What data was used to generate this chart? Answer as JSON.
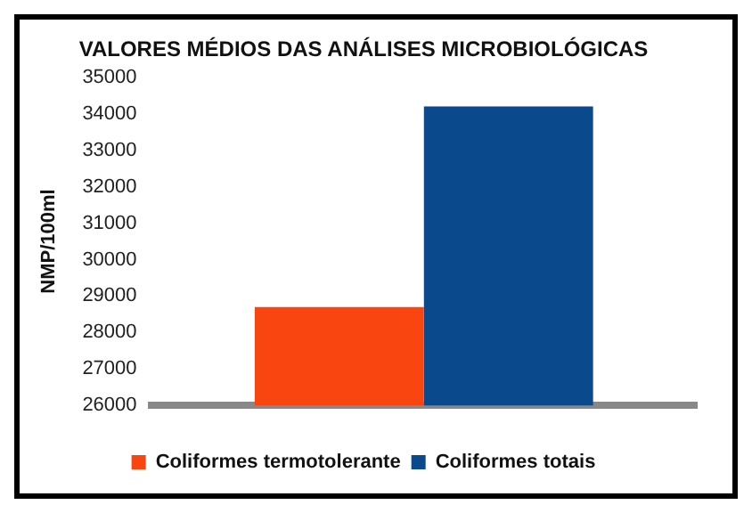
{
  "chart_data": {
    "type": "bar",
    "title": "VALORES MÉDIOS DAS ANÁLISES MICROBIOLÓGICAS",
    "ylabel": "NMP/100ml",
    "categories": [
      null
    ],
    "series": [
      {
        "name": "Coliformes termotolerante",
        "color": "#f94510",
        "values": [
          28700
        ]
      },
      {
        "name": "Coliformes totais",
        "color": "#0a4a8c",
        "values": [
          34200
        ]
      }
    ],
    "ylim": [
      26000,
      35000
    ],
    "yticks": [
      26000,
      27000,
      28000,
      29000,
      30000,
      31000,
      32000,
      33000,
      34000,
      35000
    ],
    "grid": false,
    "legend": "bottom"
  }
}
